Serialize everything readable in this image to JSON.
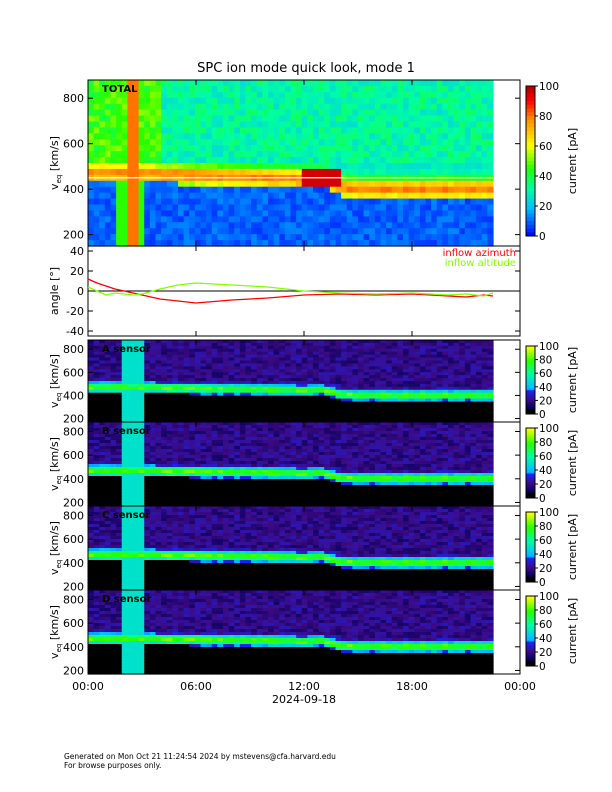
{
  "chart_data": [
    {
      "type": "heatmap",
      "title": "SPC ion mode quick look, mode 1",
      "panel_label": "TOTAL",
      "ylabel": "v",
      "ylabel_sub": "eq",
      "ylabel_unit": "[km/s]",
      "yticks": [
        "200",
        "400",
        "600",
        "800"
      ],
      "ylim": [
        150,
        880
      ],
      "colorbar_label": "current [pA]",
      "colorbar_ticks": [
        "0",
        "20",
        "40",
        "60",
        "80",
        "100"
      ],
      "zlim": [
        0,
        100
      ],
      "ridge_speed_kms": [
        [
          0,
          470
        ],
        [
          3,
          470
        ],
        [
          6,
          460
        ],
        [
          10,
          450
        ],
        [
          12,
          445
        ],
        [
          13,
          450
        ],
        [
          14,
          410
        ],
        [
          15,
          400
        ],
        [
          20,
          400
        ],
        [
          22.5,
          400
        ]
      ],
      "peak_current_pA": 100
    },
    {
      "type": "line",
      "ylabel": "angle [°]",
      "yticks": [
        "-40",
        "-20",
        "0",
        "20",
        "40"
      ],
      "ylim": [
        -45,
        45
      ],
      "series": [
        {
          "name": "inflow azimuth",
          "color": "#ff0000",
          "x": [
            0,
            0.5,
            1,
            1.5,
            2,
            2.5,
            3,
            4,
            5,
            6,
            8,
            10,
            12,
            14,
            16,
            18,
            20,
            21,
            22,
            22.5
          ],
          "y": [
            12,
            8,
            5,
            2,
            0,
            -2,
            -4,
            -8,
            -10,
            -12,
            -9,
            -7,
            -4,
            -3,
            -4,
            -3,
            -5,
            -6,
            -4,
            -5
          ]
        },
        {
          "name": "inflow altitude",
          "color": "#80ff00",
          "x": [
            0,
            0.5,
            1,
            1.5,
            2,
            2.5,
            3,
            4,
            5,
            6,
            8,
            10,
            12,
            14,
            16,
            18,
            20,
            21,
            22,
            22.5
          ],
          "y": [
            4,
            0,
            -4,
            -2,
            -3,
            -4,
            -3,
            2,
            6,
            8,
            6,
            4,
            0,
            -2,
            -3,
            -2,
            -4,
            -3,
            -5,
            -2
          ]
        }
      ]
    },
    {
      "type": "heatmap",
      "panel_label": "A sensor",
      "ylabel": "v",
      "ylabel_sub": "eq",
      "ylabel_unit": "[km/s]",
      "yticks": [
        "200",
        "400",
        "600",
        "800"
      ],
      "colorbar_label": "current [pA]",
      "colorbar_ticks": [
        "0",
        "20",
        "40",
        "60",
        "80",
        "100"
      ]
    },
    {
      "type": "heatmap",
      "panel_label": "B sensor",
      "ylabel": "v",
      "ylabel_sub": "eq",
      "ylabel_unit": "[km/s]",
      "yticks": [
        "200",
        "400",
        "600",
        "800"
      ],
      "colorbar_label": "current [pA]",
      "colorbar_ticks": [
        "0",
        "20",
        "40",
        "60",
        "80",
        "100"
      ]
    },
    {
      "type": "heatmap",
      "panel_label": "C sensor",
      "ylabel": "v",
      "ylabel_sub": "eq",
      "ylabel_unit": "[km/s]",
      "yticks": [
        "200",
        "400",
        "600",
        "800"
      ],
      "colorbar_label": "current [pA]",
      "colorbar_ticks": [
        "0",
        "20",
        "40",
        "60",
        "80",
        "100"
      ]
    },
    {
      "type": "heatmap",
      "panel_label": "D sensor",
      "ylabel": "v",
      "ylabel_sub": "eq",
      "ylabel_unit": "[km/s]",
      "yticks": [
        "200",
        "400",
        "600",
        "800"
      ],
      "colorbar_label": "current [pA]",
      "colorbar_ticks": [
        "0",
        "20",
        "40",
        "60",
        "80",
        "100"
      ]
    }
  ],
  "xaxis": {
    "ticks": [
      "00:00",
      "06:00",
      "12:00",
      "18:00",
      "00:00"
    ],
    "tick_hours": [
      0,
      6,
      12,
      18,
      24
    ],
    "date": "2024-09-18",
    "data_end_hour": 22.5
  },
  "footer": {
    "line1": "Generated on Mon Oct 21 11:24:54 2024 by mstevens@cfa.harvard.edu",
    "line2": "For browse purposes only."
  }
}
